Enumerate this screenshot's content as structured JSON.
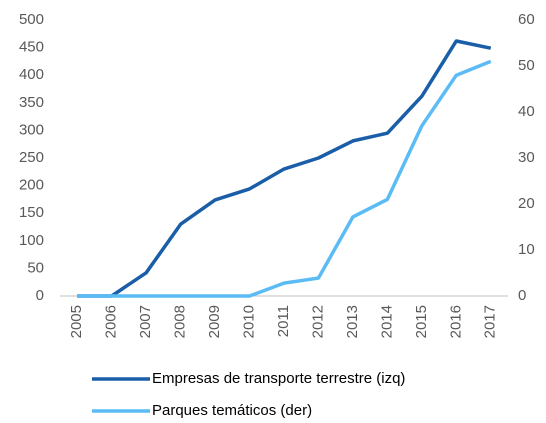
{
  "chart_data": {
    "type": "line",
    "categories": [
      "2005",
      "2006",
      "2007",
      "2008",
      "2009",
      "2010",
      "2011",
      "2012",
      "2013",
      "2014",
      "2015",
      "2016",
      "2017"
    ],
    "series": [
      {
        "name": "Empresas de transporte terrestre (izq)",
        "color": "#1a5ea8",
        "values": [
          0,
          0,
          42,
          130,
          174,
          194,
          230,
          250,
          281,
          295,
          362,
          462,
          449
        ]
      },
      {
        "name": "Parques temáticos (der)",
        "color": "#5bbcf5",
        "axis": "y2",
        "values": [
          0,
          0,
          0,
          0,
          0,
          0,
          2.8,
          3.9,
          17.2,
          21,
          37,
          48,
          51
        ]
      }
    ],
    "ylim": [
      0,
      500
    ],
    "yticks": [
      0,
      50,
      100,
      150,
      200,
      250,
      300,
      350,
      400,
      450,
      500
    ],
    "y2lim": [
      0,
      60
    ],
    "y2ticks": [
      0,
      10,
      20,
      30,
      40,
      50,
      60
    ],
    "grid": false
  }
}
